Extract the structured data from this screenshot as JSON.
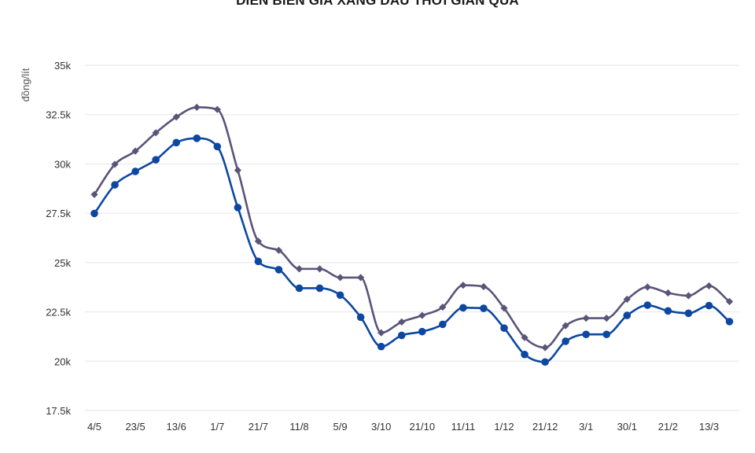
{
  "chart_data": {
    "type": "line",
    "title": "DIỄN BIẾN GIÁ XĂNG DẦU THỜI GIAN QUA",
    "ylabel": "đồng/lít",
    "xlabel": "",
    "ylim": [
      17500,
      35000
    ],
    "y_ticks": [
      17500,
      20000,
      22500,
      25000,
      27500,
      30000,
      32500,
      35000
    ],
    "y_tick_labels": [
      "17.5k",
      "20k",
      "22.5k",
      "25k",
      "27.5k",
      "30k",
      "32.5k",
      "35k"
    ],
    "x_tick_labels": [
      "4/5",
      "23/5",
      "13/6",
      "1/7",
      "21/7",
      "11/8",
      "5/9",
      "3/10",
      "21/10",
      "11/11",
      "1/12",
      "21/12",
      "3/1",
      "30/1",
      "21/2",
      "13/3"
    ],
    "grid": true,
    "legend": "none",
    "series": [
      {
        "color": "#5a5478",
        "marker": "diamond",
        "values": [
          28450,
          29980,
          30650,
          31580,
          32380,
          32870,
          32760,
          29680,
          26080,
          25620,
          24680,
          24680,
          24240,
          24240,
          21440,
          21990,
          22320,
          22740,
          23850,
          23780,
          22690,
          21200,
          20690,
          21800,
          22180,
          22180,
          23140,
          23760,
          23460,
          23320,
          23820,
          23020
        ]
      },
      {
        "color": "#0d47a1",
        "marker": "circle",
        "values": [
          27490,
          28940,
          29620,
          30210,
          31080,
          31300,
          30880,
          27790,
          25060,
          24640,
          23700,
          23700,
          23350,
          22230,
          20740,
          21310,
          21500,
          21870,
          22710,
          22680,
          21680,
          20340,
          19960,
          21010,
          21360,
          21360,
          22320,
          22840,
          22550,
          22430,
          22820,
          22010
        ]
      }
    ]
  }
}
